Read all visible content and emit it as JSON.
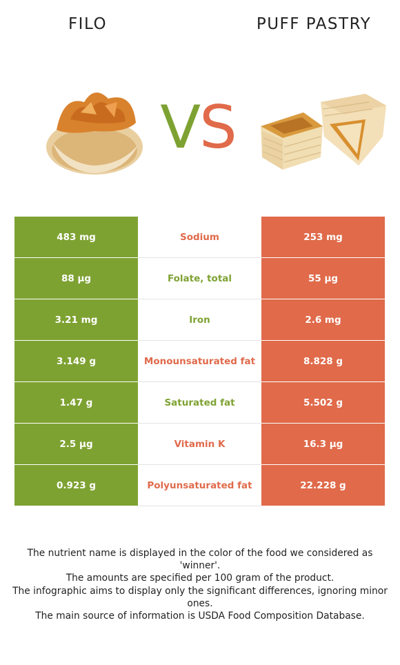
{
  "header": {
    "left_food": "FILO",
    "vs_v": "V",
    "vs_s": "S",
    "right_food": "PUFF PASTRY"
  },
  "colors": {
    "left": "#7ea232",
    "right": "#e06a4a"
  },
  "rows": [
    {
      "nutrient": "Sodium",
      "left": "483 mg",
      "right": "253 mg",
      "winner": "right"
    },
    {
      "nutrient": "Folate, total",
      "left": "88 µg",
      "right": "55 µg",
      "winner": "left"
    },
    {
      "nutrient": "Iron",
      "left": "3.21 mg",
      "right": "2.6 mg",
      "winner": "left"
    },
    {
      "nutrient": "Monounsaturated fat",
      "left": "3.149 g",
      "right": "8.828 g",
      "winner": "right"
    },
    {
      "nutrient": "Saturated fat",
      "left": "1.47 g",
      "right": "5.502 g",
      "winner": "left"
    },
    {
      "nutrient": "Vitamin K",
      "left": "2.5 µg",
      "right": "16.3 µg",
      "winner": "right"
    },
    {
      "nutrient": "Polyunsaturated fat",
      "left": "0.923 g",
      "right": "22.228 g",
      "winner": "right"
    }
  ],
  "footer": [
    "The nutrient name is displayed in the color of the food we considered as 'winner'.",
    "The amounts are specified per 100 gram of the product.",
    "The infographic aims to display only the significant differences, ignoring minor ones.",
    "The main source of information is USDA Food Composition Database."
  ]
}
